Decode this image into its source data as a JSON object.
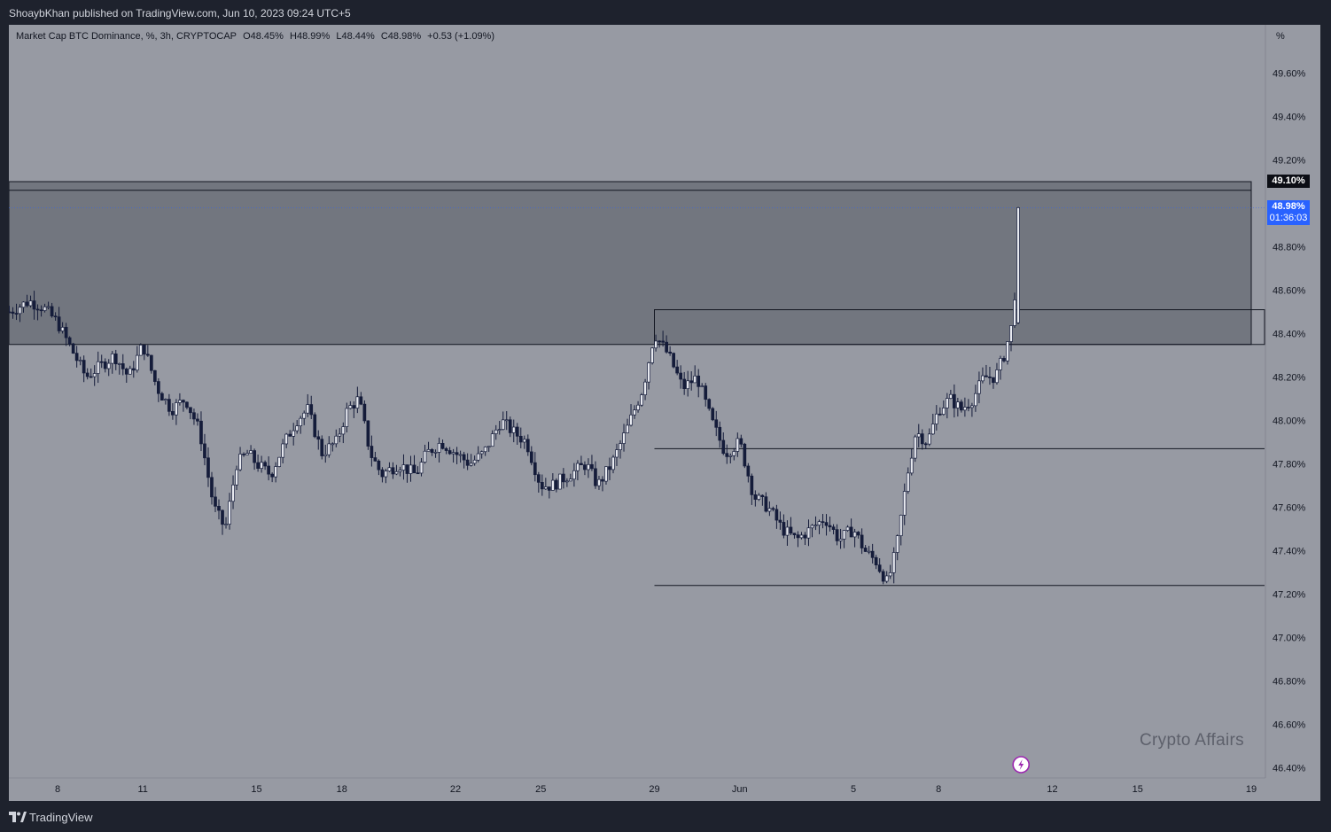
{
  "header": {
    "published_text": "ShoaybKhan published on TradingView.com, Jun 10, 2023 09:24 UTC+5"
  },
  "legend": {
    "symbol": "Market Cap BTC Dominance, %, 3h, CRYPTOCAP",
    "open": "O48.45%",
    "high": "H48.99%",
    "low": "L48.44%",
    "close": "C48.98%",
    "change": "+0.53 (+1.09%)"
  },
  "watermark": "Crypto Affairs",
  "footer": {
    "brand": "TradingView"
  },
  "price_tags": {
    "zone_top": "49.10%",
    "last_price": "48.98%",
    "countdown": "01:36:03"
  },
  "colors": {
    "background": "#979aa3",
    "frame": "#1e222d",
    "candle": "#151c3a",
    "zone_fill": "#6b7079",
    "last_price_tag": "#2962ff",
    "flash_icon": "#9c27b0"
  },
  "chart_data": {
    "type": "candlestick",
    "y_unit": "%",
    "ylim": [
      46.36,
      49.94
    ],
    "y_ticks": [
      46.4,
      46.6,
      46.8,
      47.0,
      47.2,
      47.4,
      47.6,
      47.8,
      48.0,
      48.2,
      48.4,
      48.6,
      48.8,
      49.0,
      49.2,
      49.4,
      49.6
    ],
    "y_tick_labels": [
      "46.40%",
      "46.60%",
      "46.80%",
      "47.00%",
      "47.20%",
      "47.40%",
      "47.60%",
      "47.80%",
      "48.00%",
      "48.20%",
      "48.40%",
      "48.60%",
      "48.80%",
      "49.00%",
      "49.20%",
      "49.40%",
      "49.60%"
    ],
    "y_axis_unit_label": "%",
    "x_tick_labels": [
      "8",
      "11",
      "15",
      "18",
      "22",
      "25",
      "29",
      "Jun",
      "5",
      "8",
      "12",
      "15",
      "19"
    ],
    "x_tick_days": [
      8,
      11,
      15,
      18,
      22,
      25,
      29,
      32,
      36,
      39,
      43,
      46,
      50
    ],
    "x_range_days": [
      6.3,
      50.3
    ],
    "x_note": "day numbers continue past May 31 (Jun = 32)",
    "candle_interval_hours": 3,
    "series": [
      {
        "points": [
          [
            6.3,
            48.5
          ],
          [
            7.0,
            48.55
          ],
          [
            7.5,
            48.52
          ],
          [
            8.0,
            48.45
          ],
          [
            8.6,
            48.3
          ],
          [
            9.0,
            48.2
          ],
          [
            9.5,
            48.25
          ],
          [
            10.0,
            48.3
          ],
          [
            10.5,
            48.2
          ],
          [
            11.0,
            48.35
          ],
          [
            11.5,
            48.15
          ],
          [
            12.0,
            48.05
          ],
          [
            12.5,
            48.1
          ],
          [
            13.0,
            47.95
          ],
          [
            13.5,
            47.6
          ],
          [
            13.9,
            47.5
          ],
          [
            14.3,
            47.8
          ],
          [
            14.7,
            47.85
          ],
          [
            15.0,
            47.8
          ],
          [
            15.5,
            47.75
          ],
          [
            16.0,
            47.9
          ],
          [
            16.4,
            48.0
          ],
          [
            16.8,
            48.05
          ],
          [
            17.3,
            47.85
          ],
          [
            17.8,
            47.9
          ],
          [
            18.2,
            48.05
          ],
          [
            18.6,
            48.1
          ],
          [
            19.0,
            47.85
          ],
          [
            19.4,
            47.75
          ],
          [
            20.0,
            47.8
          ],
          [
            20.6,
            47.75
          ],
          [
            21.0,
            47.85
          ],
          [
            21.5,
            47.9
          ],
          [
            22.0,
            47.85
          ],
          [
            22.5,
            47.8
          ],
          [
            23.0,
            47.85
          ],
          [
            23.6,
            48.0
          ],
          [
            24.0,
            47.95
          ],
          [
            24.5,
            47.9
          ],
          [
            25.0,
            47.7
          ],
          [
            25.4,
            47.7
          ],
          [
            26.0,
            47.75
          ],
          [
            26.6,
            47.8
          ],
          [
            27.0,
            47.7
          ],
          [
            27.5,
            47.8
          ],
          [
            28.0,
            47.95
          ],
          [
            28.6,
            48.15
          ],
          [
            29.0,
            48.4
          ],
          [
            29.5,
            48.3
          ],
          [
            30.0,
            48.15
          ],
          [
            30.5,
            48.2
          ],
          [
            31.0,
            48.0
          ],
          [
            31.5,
            47.85
          ],
          [
            32.0,
            47.9
          ],
          [
            32.5,
            47.65
          ],
          [
            33.0,
            47.6
          ],
          [
            33.5,
            47.5
          ],
          [
            34.0,
            47.45
          ],
          [
            34.5,
            47.5
          ],
          [
            35.0,
            47.55
          ],
          [
            35.5,
            47.45
          ],
          [
            36.0,
            47.5
          ],
          [
            36.4,
            47.4
          ],
          [
            36.8,
            47.35
          ],
          [
            37.2,
            47.25
          ],
          [
            37.5,
            47.4
          ],
          [
            37.9,
            47.75
          ],
          [
            38.2,
            47.95
          ],
          [
            38.6,
            47.9
          ],
          [
            39.0,
            48.05
          ],
          [
            39.4,
            48.1
          ],
          [
            39.8,
            48.05
          ],
          [
            40.2,
            48.1
          ],
          [
            40.6,
            48.2
          ],
          [
            41.0,
            48.2
          ],
          [
            41.3,
            48.3
          ],
          [
            41.6,
            48.45
          ],
          [
            41.9,
            48.98
          ]
        ]
      }
    ],
    "annotations": {
      "supply_zone": {
        "top": 49.1,
        "bottom": 48.35,
        "x_start_day": 6.3,
        "x_end_day": 50.0
      },
      "inner_zone_top": 49.06,
      "rect_29": {
        "top": 48.51,
        "bottom": 48.35,
        "x_start_day": 29.0
      },
      "horizontal_lines": [
        {
          "y": 47.87,
          "x_start_day": 29.0
        },
        {
          "y": 47.24,
          "x_start_day": 29.0
        }
      ],
      "last_price_line": 48.98
    }
  }
}
